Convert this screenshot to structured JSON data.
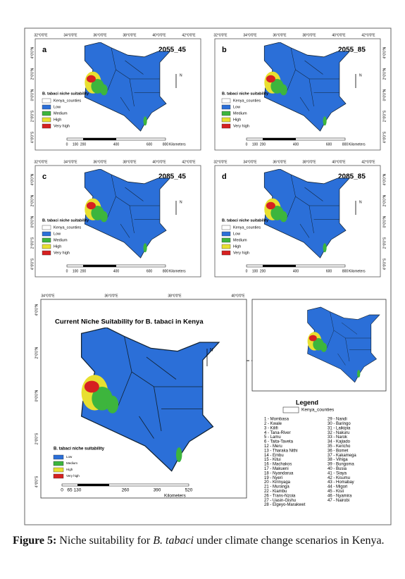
{
  "panels": [
    {
      "label": "a",
      "scenario": "2055_45"
    },
    {
      "label": "b",
      "scenario": "2055_85"
    },
    {
      "label": "c",
      "scenario": "2085_45"
    },
    {
      "label": "d",
      "scenario": "2085_85"
    }
  ],
  "lon_labels": [
    "32°0'0\"E",
    "34°0'0\"E",
    "36°0'0\"E",
    "38°0'0\"E",
    "40°0'0\"E",
    "42°0'0\"E"
  ],
  "lat_labels": [
    "4°0'0\"N",
    "2°0'0\"N",
    "0°0'0\"N",
    "2°0'0\"S",
    "4°0'0\"S"
  ],
  "north": "N",
  "panel_legend": {
    "title": "B. tabaci niche suitability",
    "items": [
      "Kenya_counties",
      "Low",
      "Medium",
      "High",
      "Very high"
    ]
  },
  "panel_scale": {
    "ticks": [
      "0",
      "100",
      "200",
      "400",
      "600",
      "800"
    ],
    "unit": "Kilometers"
  },
  "current": {
    "title": "Current Niche Suitability for B. tabaci in Kenya",
    "lon_labels": [
      "34°0'0\"E",
      "36°0'0\"E",
      "38°0'0\"E",
      "40°0'0\"E"
    ],
    "legend_title": "B. tabaci niche suitability",
    "items": [
      "Low",
      "Medium",
      "High",
      "Very high"
    ],
    "scale_ticks": [
      "0",
      "65",
      "130",
      "260",
      "390",
      "520"
    ],
    "unit": "Kilometers"
  },
  "legend": {
    "title": "Legend",
    "layer": "Kenya_counties",
    "counties": [
      "1 - Mombasa",
      "2 - Kwale",
      "3 - Kilifi",
      "4 - Tana-River",
      "5 - Lamu",
      "6 - Taita-Taveta",
      "12 - Meru",
      "13 - Tharaka Nithi",
      "14 - Embu",
      "15 - Kitui",
      "16 - Machakos",
      "17 - Makueni",
      "18 - Nyandarua",
      "19 - Nyeri",
      "20 - Kirinyaga",
      "21 - Muranga",
      "22 - Kiambu",
      "26 - Trans-Nzoia",
      "27 - Uasin-Gishu",
      "28 - Elgeyo-Marakwet",
      "29 - Nandi",
      "30 - Baringo",
      "31 - Laikipia",
      "32 - Nakuru",
      "33 - Narok",
      "34 - Kajiado",
      "35 - Kericho",
      "36 - Bomet",
      "37 - Kakamega",
      "38 - Vihiga",
      "39 - Bungoma",
      "40 - Busia",
      "41 - Siaya",
      "42 - Kisumu",
      "43 - Homabay",
      "44 - Migori",
      "45 - Kisii",
      "46 - Nyamira",
      "47 - Nairobi"
    ]
  },
  "caption": {
    "label": "Figure 5:",
    "text1": " Niche suitability for ",
    "species": "B. tabaci",
    "text2": " under climate change scenarios in Kenya."
  }
}
